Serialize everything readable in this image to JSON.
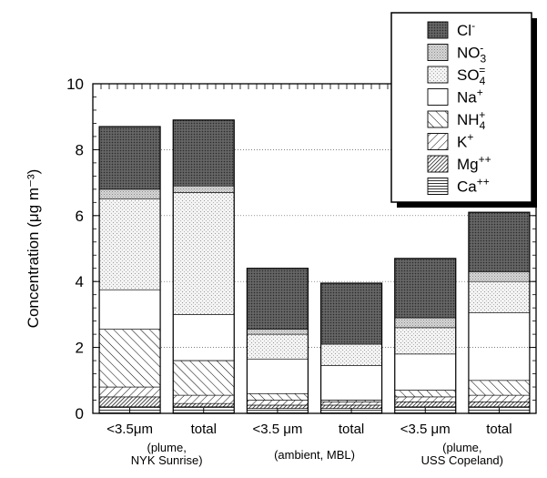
{
  "chart_data": {
    "type": "bar",
    "stacked": true,
    "ylabel": "Concentration (μg m⁻³)",
    "ylim": [
      0,
      10
    ],
    "y_ticks": [
      "0",
      "2",
      "4",
      "6",
      "8",
      "10"
    ],
    "categories": [
      "<3.5μm",
      "total",
      "<3.5 μm",
      "total",
      "<3.5 μm",
      "total"
    ],
    "groups": [
      {
        "lines": [
          "(plume,",
          "NYK Sunrise)"
        ]
      },
      {
        "lines": [
          "(ambient, MBL)"
        ]
      },
      {
        "lines": [
          "(plume,",
          "USS Copeland)"
        ]
      }
    ],
    "grid": "dotted horizontal",
    "legend_position": "top-right",
    "series": [
      {
        "name": "Ca",
        "sup": "++",
        "sub": "",
        "pattern": "hlines",
        "values": [
          0.2,
          0.2,
          0.15,
          0.15,
          0.2,
          0.2
        ]
      },
      {
        "name": "Mg",
        "sup": "++",
        "sub": "",
        "pattern": "dense-diag",
        "values": [
          0.3,
          0.1,
          0.1,
          0.1,
          0.15,
          0.15
        ]
      },
      {
        "name": "K",
        "sup": "+",
        "sub": "",
        "pattern": "diag-fwd",
        "values": [
          0.3,
          0.25,
          0.15,
          0.1,
          0.15,
          0.2
        ]
      },
      {
        "name": "NH",
        "sup": "+",
        "sub": "4",
        "pattern": "diag-back",
        "values": [
          1.75,
          1.05,
          0.2,
          0.05,
          0.2,
          0.45
        ]
      },
      {
        "name": "Na",
        "sup": "+",
        "sub": "",
        "pattern": "white",
        "values": [
          1.2,
          1.4,
          1.05,
          1.05,
          1.1,
          2.05
        ]
      },
      {
        "name": "SO",
        "sup": "=",
        "sub": "4",
        "pattern": "stipple",
        "values": [
          2.75,
          3.7,
          0.75,
          0.65,
          0.8,
          0.95
        ]
      },
      {
        "name": "NO",
        "sup": "-",
        "sub": "3",
        "pattern": "light-dots",
        "values": [
          0.3,
          0.2,
          0.15,
          0.0,
          0.3,
          0.3
        ]
      },
      {
        "name": "Cl",
        "sup": "-",
        "sub": "",
        "pattern": "dark",
        "values": [
          1.9,
          2.0,
          1.85,
          1.85,
          1.8,
          1.8
        ]
      }
    ]
  }
}
